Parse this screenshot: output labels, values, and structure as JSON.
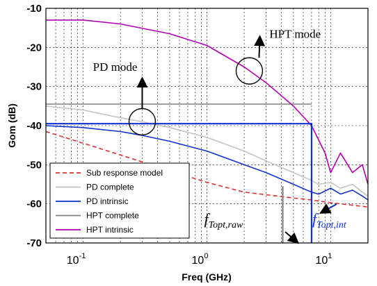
{
  "chart_data": {
    "type": "line",
    "xlabel": "Freq (GHz)",
    "ylabel": "Gom (dB)",
    "x_scale": "log",
    "xlim": [
      0.05,
      20
    ],
    "ylim": [
      -70,
      -10
    ],
    "x_ticks": [
      {
        "value": 0.1,
        "base": "10",
        "exp": "-1"
      },
      {
        "value": 1,
        "base": "10",
        "exp": "0"
      },
      {
        "value": 10,
        "base": "10",
        "exp": "1"
      }
    ],
    "y_ticks": [
      -10,
      -20,
      -30,
      -40,
      -50,
      -60,
      -70
    ],
    "grid": true,
    "legend_position": "bottom-left",
    "series": [
      {
        "name": "Sub response model",
        "color": "#e03030",
        "style": "dashed",
        "x": [
          0.05,
          0.1,
          0.2,
          0.5,
          1,
          2,
          5,
          7,
          10,
          20
        ],
        "y": [
          -41.5,
          -44.5,
          -47.5,
          -51.5,
          -54.5,
          -57,
          -58.5,
          -59,
          -59.7,
          -60.8
        ]
      },
      {
        "name": "PD complete",
        "color": "#c4c4c4",
        "style": "solid",
        "x": [
          0.05,
          0.1,
          0.2,
          0.3,
          0.5,
          1,
          2,
          3,
          5,
          7,
          8,
          10,
          12,
          15,
          18,
          20
        ],
        "y": [
          -35,
          -36,
          -38,
          -39,
          -40.5,
          -43,
          -46.5,
          -49,
          -52,
          -54,
          -55,
          -54.5,
          -56,
          -55,
          -57,
          -58
        ]
      },
      {
        "name": "PD intrinsic",
        "color": "#1030d0",
        "style": "solid",
        "x": [
          0.05,
          0.1,
          0.2,
          0.3,
          0.5,
          1,
          2,
          3,
          5,
          7,
          8,
          10,
          12,
          15,
          18,
          20
        ],
        "y": [
          -40,
          -40.5,
          -41.5,
          -42.5,
          -44,
          -46.5,
          -50,
          -52,
          -55,
          -57,
          -57.5,
          -56,
          -57.5,
          -56.5,
          -58,
          -59
        ]
      },
      {
        "name": "HPT complete",
        "color": "#808080",
        "style": "solid",
        "x": [
          0.05,
          0.1,
          0.3,
          1,
          3,
          7
        ],
        "y": [
          -34.5,
          -34.5,
          -34.5,
          -34.5,
          -34.5,
          -34.5
        ]
      },
      {
        "name": "HPT intrinsic",
        "color": "#b000b0",
        "style": "solid",
        "x": [
          0.05,
          0.1,
          0.2,
          0.5,
          1,
          2,
          3,
          5,
          7,
          9,
          10,
          12,
          15,
          18,
          20
        ],
        "y": [
          -13,
          -13,
          -14,
          -16.5,
          -19.5,
          -25,
          -29,
          -35,
          -40,
          -47,
          -52,
          -47,
          -52,
          -50,
          -55
        ]
      }
    ],
    "markers": [
      {
        "color": "#1030d0",
        "points": [
          [
            0.05,
            -39.5
          ],
          [
            7,
            -39.5
          ],
          [
            7,
            -70
          ]
        ]
      },
      {
        "color": "#808080",
        "points": [
          [
            4.1,
            -55.5
          ],
          [
            4.1,
            -70
          ]
        ]
      }
    ],
    "annotations": [
      {
        "label": "PD mode",
        "circle": [
          0.3,
          -39
        ],
        "text_at": [
          0.12,
          -26
        ]
      },
      {
        "label": "HPT mode",
        "circle": [
          2.2,
          -26
        ],
        "text_at": [
          3.2,
          -17.5
        ]
      }
    ],
    "fmarks": [
      {
        "base": "f",
        "sub": "Topt,raw",
        "color": "#000000",
        "x": 0.95,
        "y": -65.2
      },
      {
        "base": "f",
        "sub": "Topt,int",
        "color": "#1030d0",
        "x": 7.1,
        "y": -65.2
      }
    ]
  }
}
